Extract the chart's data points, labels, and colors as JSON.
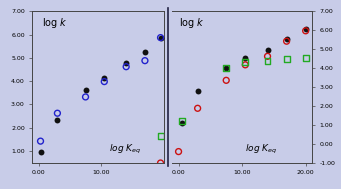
{
  "background_color": "#c8cce8",
  "left_panel": {
    "xlim": [
      -1,
      20
    ],
    "ylim": [
      0.5,
      7.0
    ],
    "yticks": [
      1.0,
      2.0,
      3.0,
      4.0,
      5.0,
      6.0,
      7.0
    ],
    "yticklabels": [
      "1.00",
      "2.00",
      "3.00",
      "4.00",
      "5.00",
      "6.00",
      "7.00"
    ],
    "xticks": [
      0,
      10
    ],
    "xticklabels": [
      "0.00",
      "10.00"
    ],
    "black_dots": [
      [
        0.3,
        0.97
      ],
      [
        3.0,
        2.35
      ],
      [
        7.5,
        3.62
      ],
      [
        10.5,
        4.15
      ],
      [
        14.0,
        4.78
      ],
      [
        17.0,
        5.27
      ],
      [
        19.5,
        5.87
      ]
    ],
    "blue_circles": [
      [
        0.3,
        1.42
      ],
      [
        3.0,
        2.62
      ],
      [
        7.5,
        3.32
      ],
      [
        10.5,
        3.98
      ],
      [
        14.0,
        4.62
      ],
      [
        17.0,
        4.88
      ],
      [
        19.5,
        5.87
      ]
    ],
    "green_squares": [
      [
        19.5,
        1.65
      ]
    ],
    "red_circles": [
      [
        19.5,
        0.48
      ]
    ]
  },
  "right_panel": {
    "xlim": [
      -1,
      21
    ],
    "ylim": [
      -1.0,
      7.0
    ],
    "yticks": [
      -1.0,
      0.0,
      1.0,
      2.0,
      3.0,
      4.0,
      5.0,
      6.0,
      7.0
    ],
    "yticklabels": [
      "-1.00",
      "0.00",
      "1.00",
      "2.00",
      "3.00",
      "4.00",
      "5.00",
      "6.00",
      "7.00"
    ],
    "xticks": [
      0,
      10,
      20
    ],
    "xticklabels": [
      "0.00",
      "10.00",
      "20.00"
    ],
    "black_dots": [
      [
        0.5,
        1.1
      ],
      [
        3.0,
        2.8
      ],
      [
        7.5,
        3.98
      ],
      [
        10.5,
        4.55
      ],
      [
        14.0,
        4.97
      ],
      [
        17.0,
        5.52
      ],
      [
        20.0,
        6.05
      ]
    ],
    "red_circles": [
      [
        0.0,
        -0.42
      ],
      [
        3.0,
        1.87
      ],
      [
        7.5,
        3.35
      ],
      [
        10.5,
        4.17
      ],
      [
        14.0,
        4.62
      ],
      [
        17.0,
        5.42
      ],
      [
        20.0,
        5.97
      ]
    ],
    "green_squares": [
      [
        0.5,
        1.22
      ],
      [
        7.5,
        3.98
      ],
      [
        10.5,
        4.32
      ],
      [
        14.0,
        4.37
      ],
      [
        17.0,
        4.47
      ],
      [
        20.0,
        4.52
      ]
    ]
  },
  "divider_color": "#222244",
  "dot_color": "#111111",
  "blue_color": "#2222cc",
  "red_color": "#cc1111",
  "green_color": "#22aa22",
  "marker_size": 18,
  "marker_lw": 1.0,
  "tick_fontsize": 4.5,
  "label_fontsize": 6.5,
  "title_fontsize": 7.0
}
